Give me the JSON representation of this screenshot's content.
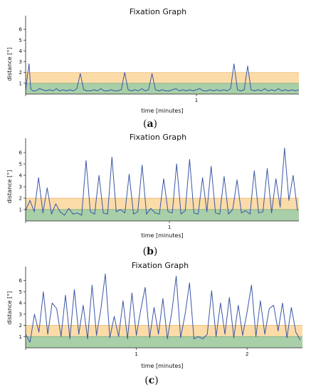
{
  "chart_data": [
    {
      "type": "line",
      "panel_label": "a",
      "title": "Fixation Graph",
      "xlabel": "time [minutes]",
      "ylabel": "distance [°]",
      "ylim": [
        0,
        7
      ],
      "yticks": [
        1,
        2,
        3,
        4,
        5,
        6
      ],
      "xlim": [
        0,
        1.6
      ],
      "xticks": [
        1
      ],
      "bands": [
        {
          "from": 0,
          "to": 1,
          "color": "#a9cfa8"
        },
        {
          "from": 1,
          "to": 2,
          "color": "#fbdca9"
        }
      ],
      "line_color": "#3b57a8",
      "grid": false,
      "series": [
        {
          "x": [
            0,
            0.02,
            0.03,
            0.04,
            0.06,
            0.08,
            0.1,
            0.12,
            0.14,
            0.16,
            0.18,
            0.2,
            0.22,
            0.24,
            0.26,
            0.28,
            0.3,
            0.32,
            0.34,
            0.36,
            0.38,
            0.4,
            0.42,
            0.44,
            0.46,
            0.48,
            0.5,
            0.52,
            0.54,
            0.56,
            0.58,
            0.6,
            0.62,
            0.64,
            0.66,
            0.68,
            0.7,
            0.72,
            0.74,
            0.76,
            0.78,
            0.8,
            0.82,
            0.84,
            0.86,
            0.88,
            0.9,
            0.92,
            0.94,
            0.96,
            0.98,
            1.0,
            1.02,
            1.04,
            1.06,
            1.08,
            1.1,
            1.12,
            1.14,
            1.16,
            1.18,
            1.2,
            1.22,
            1.24,
            1.26,
            1.28,
            1.3,
            1.32,
            1.34,
            1.36,
            1.38,
            1.4,
            1.42,
            1.44,
            1.46,
            1.48,
            1.5,
            1.52,
            1.54,
            1.56,
            1.58,
            1.6
          ],
          "y": [
            0.4,
            2.8,
            0.5,
            0.3,
            0.3,
            0.5,
            0.4,
            0.3,
            0.4,
            0.3,
            0.5,
            0.3,
            0.4,
            0.3,
            0.4,
            0.3,
            0.5,
            1.9,
            0.4,
            0.3,
            0.3,
            0.4,
            0.3,
            0.5,
            0.3,
            0.3,
            0.4,
            0.3,
            0.3,
            0.4,
            2.0,
            0.4,
            0.3,
            0.4,
            0.3,
            0.5,
            0.3,
            0.4,
            1.9,
            0.4,
            0.3,
            0.4,
            0.3,
            0.3,
            0.4,
            0.5,
            0.3,
            0.4,
            0.3,
            0.4,
            0.3,
            0.4,
            0.5,
            0.3,
            0.3,
            0.4,
            0.3,
            0.4,
            0.3,
            0.4,
            0.3,
            0.5,
            2.8,
            0.4,
            0.3,
            0.4,
            2.6,
            0.4,
            0.3,
            0.4,
            0.3,
            0.5,
            0.3,
            0.4,
            0.3,
            0.5,
            0.3,
            0.4,
            0.3,
            0.4,
            0.3,
            0.4
          ]
        }
      ]
    },
    {
      "type": "line",
      "panel_label": "b",
      "title": "Fixation Graph",
      "xlabel": "time [minutes]",
      "ylabel": "distance [°]",
      "ylim": [
        0,
        7
      ],
      "yticks": [
        1,
        2,
        3,
        4,
        5,
        6
      ],
      "xlim": [
        0,
        1.9
      ],
      "xticks": [
        1
      ],
      "bands": [
        {
          "from": 0,
          "to": 1,
          "color": "#a9cfa8"
        },
        {
          "from": 1,
          "to": 2,
          "color": "#fbdca9"
        }
      ],
      "line_color": "#3b57a8",
      "grid": false,
      "series": [
        {
          "x": [
            0,
            0.03,
            0.06,
            0.09,
            0.12,
            0.15,
            0.18,
            0.21,
            0.24,
            0.27,
            0.3,
            0.33,
            0.36,
            0.39,
            0.42,
            0.45,
            0.48,
            0.51,
            0.54,
            0.57,
            0.6,
            0.63,
            0.66,
            0.69,
            0.72,
            0.75,
            0.78,
            0.81,
            0.84,
            0.87,
            0.9,
            0.93,
            0.96,
            0.99,
            1.02,
            1.05,
            1.08,
            1.11,
            1.14,
            1.17,
            1.2,
            1.23,
            1.26,
            1.29,
            1.32,
            1.35,
            1.38,
            1.41,
            1.44,
            1.47,
            1.5,
            1.53,
            1.56,
            1.59,
            1.62,
            1.65,
            1.68,
            1.71,
            1.74,
            1.77,
            1.8,
            1.83,
            1.86,
            1.89
          ],
          "y": [
            0.9,
            1.8,
            0.8,
            3.8,
            0.7,
            2.9,
            0.6,
            1.5,
            0.8,
            0.5,
            1.1,
            0.6,
            0.7,
            0.5,
            5.3,
            0.8,
            0.6,
            4.0,
            0.7,
            0.6,
            5.6,
            0.8,
            1.0,
            0.7,
            4.1,
            0.6,
            0.8,
            4.9,
            0.6,
            1.1,
            0.7,
            0.6,
            3.7,
            0.8,
            0.7,
            5.0,
            0.6,
            0.9,
            5.4,
            0.7,
            0.6,
            3.8,
            0.8,
            4.8,
            0.7,
            0.6,
            3.9,
            0.6,
            1.0,
            3.6,
            0.7,
            0.9,
            0.6,
            4.4,
            0.7,
            0.8,
            4.6,
            0.7,
            3.7,
            1.2,
            6.4,
            1.8,
            4.0,
            0.9
          ]
        }
      ]
    },
    {
      "type": "line",
      "panel_label": "c",
      "title": "Fixation Graph",
      "xlabel": "time [minutes]",
      "ylabel": "distance [°]",
      "ylim": [
        0,
        7
      ],
      "yticks": [
        1,
        2,
        3,
        4,
        5,
        6
      ],
      "xlim": [
        0,
        2.5
      ],
      "xticks": [
        1,
        2
      ],
      "bands": [
        {
          "from": 0,
          "to": 1,
          "color": "#a9cfa8"
        },
        {
          "from": 1,
          "to": 2,
          "color": "#fbdca9"
        }
      ],
      "line_color": "#3b57a8",
      "grid": false,
      "series": [
        {
          "x": [
            0,
            0.04,
            0.08,
            0.12,
            0.16,
            0.2,
            0.24,
            0.28,
            0.32,
            0.36,
            0.4,
            0.44,
            0.48,
            0.52,
            0.56,
            0.6,
            0.64,
            0.68,
            0.72,
            0.76,
            0.8,
            0.84,
            0.88,
            0.92,
            0.96,
            1.0,
            1.04,
            1.08,
            1.12,
            1.16,
            1.2,
            1.24,
            1.28,
            1.32,
            1.36,
            1.4,
            1.44,
            1.48,
            1.52,
            1.56,
            1.6,
            1.64,
            1.68,
            1.72,
            1.76,
            1.8,
            1.84,
            1.88,
            1.92,
            1.96,
            2.0,
            2.04,
            2.08,
            2.12,
            2.16,
            2.2,
            2.24,
            2.28,
            2.32,
            2.36,
            2.4,
            2.44,
            2.48
          ],
          "y": [
            1.2,
            0.5,
            3.0,
            1.4,
            5.0,
            1.2,
            4.0,
            3.5,
            1.0,
            4.7,
            0.8,
            5.2,
            1.2,
            3.8,
            0.8,
            5.6,
            1.1,
            3.5,
            6.6,
            0.9,
            2.8,
            1.0,
            4.2,
            0.8,
            4.9,
            1.1,
            3.4,
            5.4,
            0.9,
            3.6,
            1.2,
            4.4,
            0.8,
            3.2,
            6.4,
            0.9,
            3.0,
            5.8,
            0.8,
            1.0,
            0.8,
            1.2,
            5.1,
            1.0,
            4.0,
            1.2,
            4.5,
            0.9,
            3.8,
            1.1,
            3.2,
            5.6,
            1.0,
            4.2,
            1.2,
            3.5,
            3.8,
            1.5,
            4.0,
            0.9,
            3.6,
            1.4,
            0.7
          ]
        }
      ]
    }
  ],
  "captions": [
    "a",
    "b",
    "c"
  ]
}
